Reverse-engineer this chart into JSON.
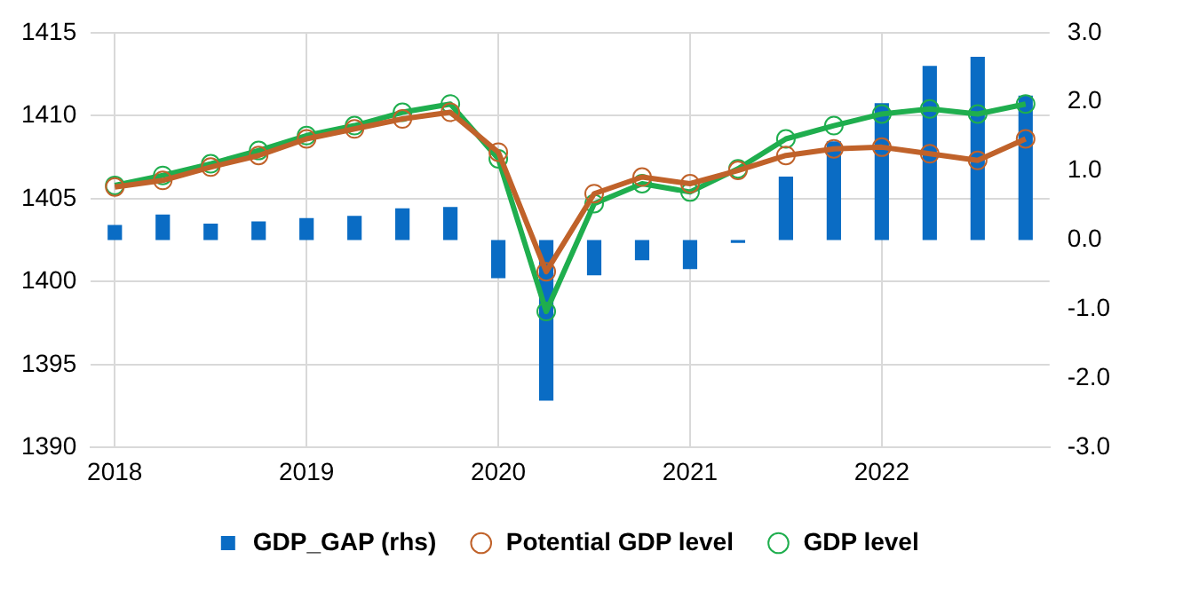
{
  "chart_data": {
    "type": "line",
    "categories": [
      "2018",
      null,
      null,
      null,
      "2019",
      null,
      null,
      null,
      "2020",
      null,
      null,
      null,
      "2021",
      null,
      null,
      null,
      "2022",
      null,
      null,
      null
    ],
    "series": [
      {
        "name": "GDP_GAP (rhs)",
        "type": "bar",
        "axis": "y2",
        "color": "#0a6cc4",
        "values": [
          0.22,
          0.37,
          0.24,
          0.27,
          0.32,
          0.35,
          0.46,
          0.48,
          -0.55,
          -2.32,
          -0.51,
          -0.29,
          -0.42,
          -0.04,
          0.92,
          1.43,
          1.98,
          2.52,
          2.65,
          2.09
        ]
      },
      {
        "name": "Potential GDP level",
        "color": "#c0622a",
        "values": [
          1405.7,
          1406.1,
          1406.9,
          1407.6,
          1408.6,
          1409.2,
          1409.8,
          1410.2,
          1407.8,
          1400.6,
          1405.3,
          1406.3,
          1405.9,
          1406.7,
          1407.6,
          1408.0,
          1408.1,
          1407.7,
          1407.3,
          1408.6
        ]
      },
      {
        "name": "GDP level",
        "color": "#1fae4e",
        "values": [
          1405.8,
          1406.4,
          1407.1,
          1407.9,
          1408.8,
          1409.4,
          1410.2,
          1410.7,
          1407.4,
          1398.2,
          1404.7,
          1405.9,
          1405.4,
          1406.8,
          1408.6,
          1409.4,
          1410.1,
          1410.4,
          1410.1,
          1410.7
        ]
      }
    ],
    "ylim": [
      1390,
      1415
    ],
    "yticks": [
      1390,
      1395,
      1400,
      1405,
      1410,
      1415
    ],
    "y2lim": [
      -3,
      3
    ],
    "y2ticks": [
      {
        "value": -3,
        "label": "-3.0"
      },
      {
        "value": -2,
        "label": "-2.0"
      },
      {
        "value": -1,
        "label": "-1.0"
      },
      {
        "value": 0,
        "label": "0.0"
      },
      {
        "value": 1,
        "label": "1.0"
      },
      {
        "value": 2,
        "label": "2.0"
      },
      {
        "value": 3,
        "label": "3.0"
      }
    ],
    "grid": true,
    "legend": "bottom",
    "marker": "circle"
  }
}
